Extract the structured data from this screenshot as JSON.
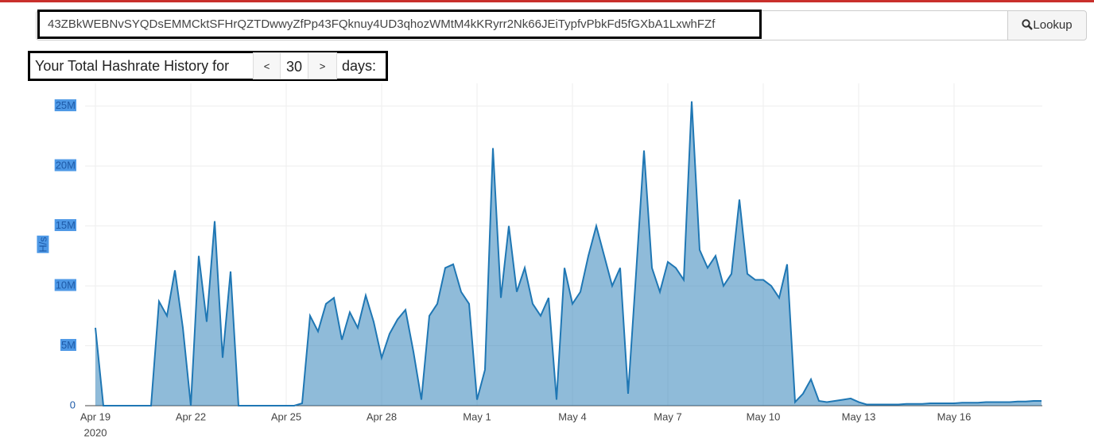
{
  "search": {
    "address": "43ZBkWEBNvSYQDsEMMCktSFHrQZTDwwyZfPp43FQknuy4UD3qhozWMtM4kKRyrr2Nk66JEiTypfvPbkFd5fGXbA1LxwhFZf",
    "button": "Lookup"
  },
  "header": {
    "prefix": "Your Total Hashrate History for",
    "prev": "<",
    "days": 30,
    "next": ">",
    "suffix": "days:"
  },
  "chart_data": {
    "type": "area",
    "ylabel": "H/s",
    "color": "#1f77b4",
    "grid": true,
    "x_sublabel": "2020",
    "categories": [
      "Apr 19",
      null,
      null,
      null,
      null,
      null,
      null,
      null,
      null,
      null,
      null,
      null,
      "Apr 22",
      null,
      null,
      null,
      null,
      null,
      null,
      null,
      null,
      null,
      null,
      null,
      "Apr 25",
      null,
      null,
      null,
      null,
      null,
      null,
      null,
      null,
      null,
      null,
      null,
      "Apr 28",
      null,
      null,
      null,
      null,
      null,
      null,
      null,
      null,
      null,
      null,
      null,
      "May 1",
      null,
      null,
      null,
      null,
      null,
      null,
      null,
      null,
      null,
      null,
      null,
      "May 4",
      null,
      null,
      null,
      null,
      null,
      null,
      null,
      null,
      null,
      null,
      null,
      "May 7",
      null,
      null,
      null,
      null,
      null,
      null,
      null,
      null,
      null,
      null,
      null,
      "May 10",
      null,
      null,
      null,
      null,
      null,
      null,
      null,
      null,
      null,
      null,
      null,
      "May 13",
      null,
      null,
      null,
      null,
      null,
      null,
      null,
      null,
      null,
      null,
      null,
      "May 16",
      null,
      null,
      null,
      null,
      null,
      null,
      null,
      null,
      null,
      null,
      null
    ],
    "values": [
      6500000,
      0,
      0,
      0,
      0,
      0,
      0,
      0,
      8700000,
      7500000,
      11300000,
      6500000,
      0,
      12500000,
      7000000,
      15400000,
      4000000,
      11200000,
      0,
      0,
      0,
      0,
      0,
      0,
      0,
      0,
      200000,
      7500000,
      6200000,
      8500000,
      9000000,
      5500000,
      7800000,
      6500000,
      9200000,
      7000000,
      4000000,
      6000000,
      7200000,
      8000000,
      4500000,
      500000,
      7500000,
      8500000,
      11500000,
      11800000,
      9500000,
      8500000,
      500000,
      3000000,
      21500000,
      9000000,
      15000000,
      9500000,
      11500000,
      8500000,
      7500000,
      9000000,
      500000,
      11500000,
      8500000,
      9500000,
      12500000,
      15000000,
      12500000,
      10000000,
      11500000,
      1000000,
      11000000,
      21300000,
      11500000,
      9500000,
      12000000,
      11500000,
      10500000,
      25400000,
      13000000,
      11500000,
      12500000,
      10000000,
      11000000,
      17200000,
      11000000,
      10500000,
      10500000,
      10000000,
      9000000,
      11800000,
      300000,
      1000000,
      2200000,
      400000,
      300000,
      400000,
      500000,
      600000,
      300000,
      100000,
      100000,
      100000,
      100000,
      100000,
      150000,
      150000,
      150000,
      200000,
      200000,
      200000,
      200000,
      250000,
      250000,
      250000,
      300000,
      300000,
      300000,
      300000,
      350000,
      350000,
      400000,
      400000
    ],
    "ylim": [
      0,
      26900000
    ],
    "yticks": [
      0,
      {
        "value": 5000000,
        "label": "5M"
      },
      {
        "value": 10000000,
        "label": "10M"
      },
      {
        "value": 15000000,
        "label": "15M"
      },
      {
        "value": 20000000,
        "label": "20M"
      },
      {
        "value": 25000000,
        "label": "25M"
      }
    ]
  }
}
